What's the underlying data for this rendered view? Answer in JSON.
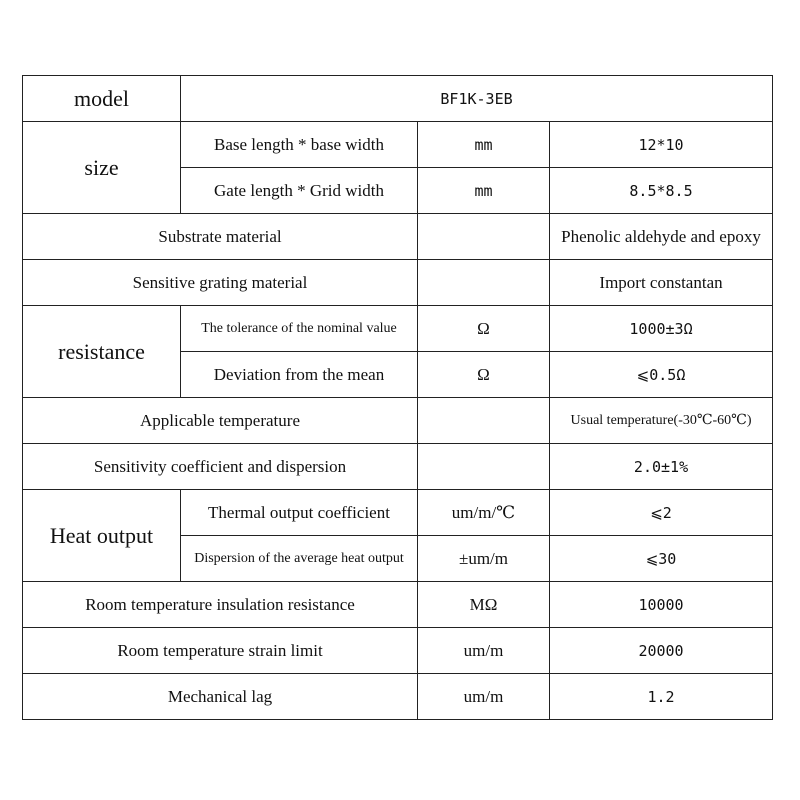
{
  "rows": {
    "model": {
      "label": "model",
      "value": "BF1K-3EB"
    },
    "size": {
      "label": "size",
      "base": {
        "param": "Base length * base width",
        "unit": "mm",
        "value": "12*10"
      },
      "gate": {
        "param": "Gate length * Grid width",
        "unit": "mm",
        "value": "8.5*8.5"
      }
    },
    "substrate": {
      "param": "Substrate material",
      "unit": "",
      "value": "Phenolic aldehyde and epoxy"
    },
    "grating": {
      "param": "Sensitive grating material",
      "unit": "",
      "value": "Import constantan"
    },
    "resistance": {
      "label": "resistance",
      "tolerance": {
        "param": "The tolerance of the nominal value",
        "unit": "Ω",
        "value": "1000±3Ω"
      },
      "deviation": {
        "param": "Deviation from the mean",
        "unit": "Ω",
        "value": "⩽0.5Ω"
      }
    },
    "temperature": {
      "param": "Applicable temperature",
      "unit": "",
      "value": "Usual temperature(-30℃-60℃)"
    },
    "sensitivity": {
      "param": "Sensitivity coefficient and dispersion",
      "unit": "",
      "value": "2.0±1%"
    },
    "heat": {
      "label": "Heat output",
      "coefficient": {
        "param": "Thermal output coefficient",
        "unit": "um/m/℃",
        "value": "⩽2"
      },
      "dispersion": {
        "param": "Dispersion of the average heat output",
        "unit": "±um/m",
        "value": "⩽30"
      }
    },
    "insulation": {
      "param": "Room temperature insulation resistance",
      "unit": "MΩ",
      "value": "10000"
    },
    "strain": {
      "param": "Room temperature strain limit",
      "unit": "um/m",
      "value": "20000"
    },
    "lag": {
      "param": "Mechanical lag",
      "unit": "um/m",
      "value": "1.2"
    }
  }
}
